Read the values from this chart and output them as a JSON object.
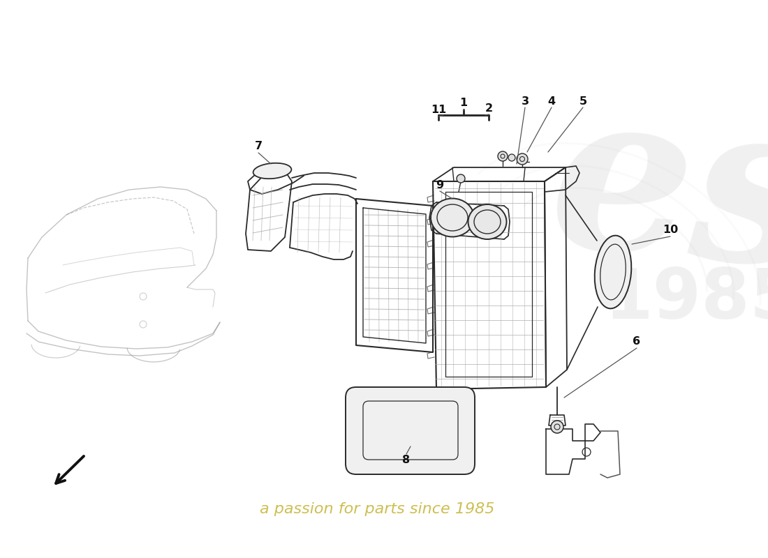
{
  "background_color": "#ffffff",
  "line_color": "#2a2a2a",
  "light_line": "#555555",
  "grid_color": "#aaaaaa",
  "watermark_text": "a passion for parts since 1985",
  "watermark_color": "#c8b840",
  "logo_color": "#d8d8d8",
  "car_color": "#888888",
  "fig_width": 11.0,
  "fig_height": 8.0,
  "dpi": 100
}
